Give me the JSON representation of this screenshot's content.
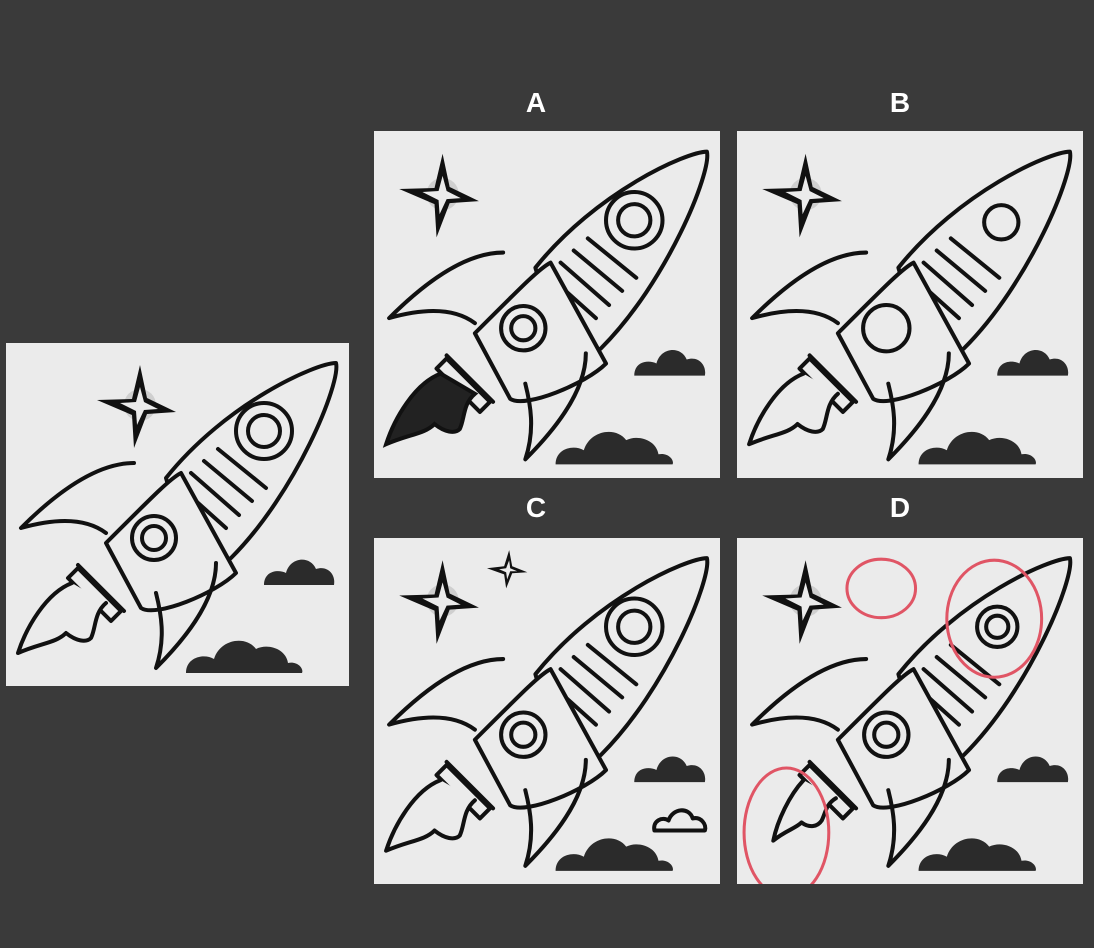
{
  "labels": {
    "a": "A",
    "b": "B",
    "c": "C",
    "d": "D"
  },
  "colors": {
    "background": "#3a3a3a",
    "panel": "#ebebeb",
    "ink": "#111111",
    "cloud": "#2b2b2b",
    "marker": "#e05565"
  },
  "icons": [
    "rocket",
    "star",
    "cloud",
    "flame",
    "window",
    "marker-circle"
  ]
}
